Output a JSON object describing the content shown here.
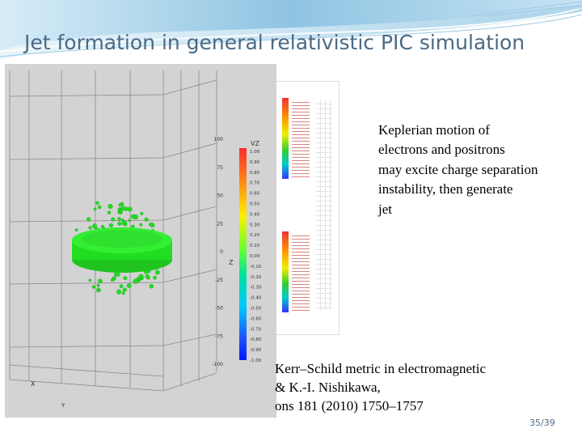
{
  "slide": {
    "title": "Jet formation in general relativistic PIC simulation",
    "description_lines": [
      "Keplerian motion of",
      "electrons and positrons",
      "may excite charge separation",
      "instability, then generate",
      "jet"
    ],
    "citation_lines": [
      "Kerr–Schild metric in electromagnetic",
      "& K.-I. Nishikawa,",
      "ons 181 (2010) 1750–1757"
    ],
    "page_number": "35/39"
  },
  "figure": {
    "colorbar_label": "VZ",
    "colorbar_ticks": [
      "1.00",
      "0.90",
      "0.80",
      "0.70",
      "0.60",
      "0.50",
      "0.40",
      "0.30",
      "0.20",
      "0.10",
      "0.00",
      "-0.10",
      "-0.20",
      "-0.30",
      "-0.40",
      "-0.50",
      "-0.60",
      "-0.70",
      "-0.80",
      "-0.90",
      "-1.00"
    ],
    "z_axis_label": "Z",
    "z_ticks": [
      "100",
      "75",
      "50",
      "25",
      "0",
      "-25",
      "-50",
      "-75",
      "-100"
    ],
    "x_axis_label": "X",
    "y_axis_label": "Y",
    "particle_color": "#22dd22",
    "colors": {
      "title": "#4a6a86",
      "panel_bg": "#d3d3d3"
    }
  }
}
